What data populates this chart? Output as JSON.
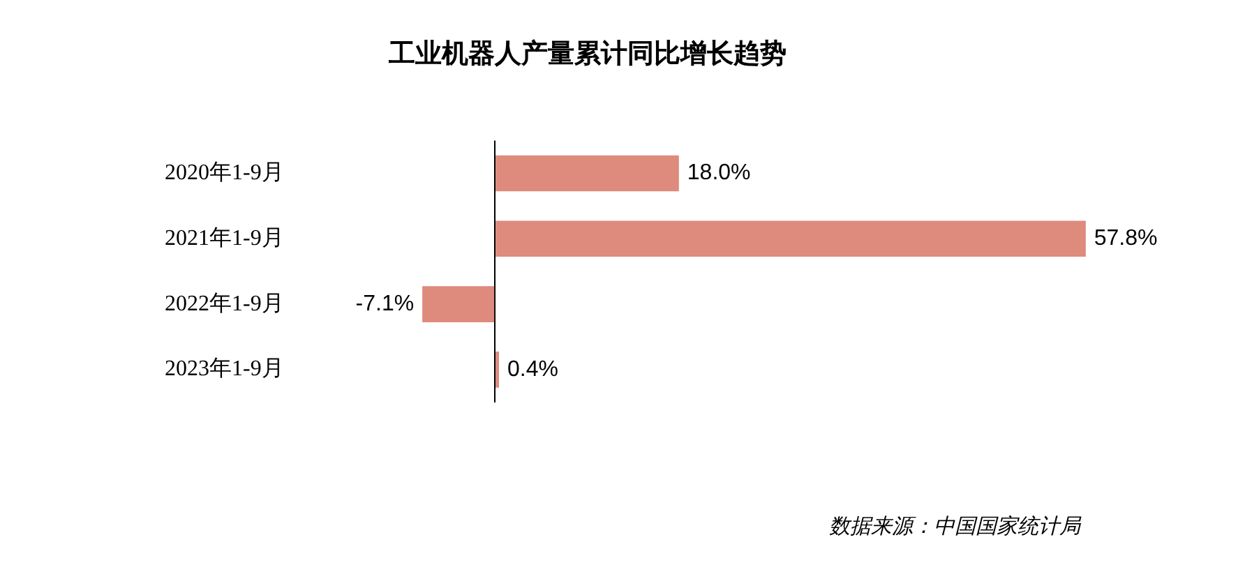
{
  "chart_data": {
    "type": "bar",
    "orientation": "horizontal",
    "title": "工业机器人产量累计同比增长趋势",
    "categories": [
      "2020年1-9月",
      "2021年1-9月",
      "2022年1-9月",
      "2023年1-9月"
    ],
    "values": [
      18.0,
      57.8,
      -7.1,
      0.4
    ],
    "value_labels": [
      "18.0%",
      "57.8%",
      "-7.1%",
      "0.4%"
    ],
    "color": "#de8a7c",
    "grid": false,
    "legend": false,
    "tick_labels": "y",
    "annotations": [
      "数据来源：中国国家统计局"
    ]
  }
}
